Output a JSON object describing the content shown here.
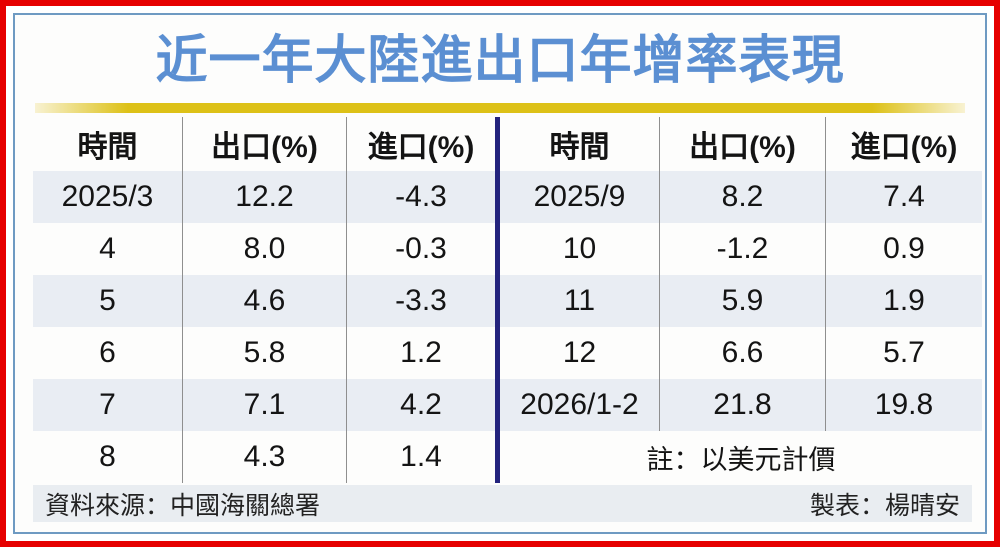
{
  "title": "近一年大陸進出口年增率表現",
  "tables": [
    {
      "headers": [
        "時間",
        "出口(%)",
        "進口(%)"
      ],
      "rows": [
        [
          "2025/3",
          "12.2",
          "-4.3"
        ],
        [
          "4",
          "8.0",
          "-0.3"
        ],
        [
          "5",
          "4.6",
          "-3.3"
        ],
        [
          "6",
          "5.8",
          "1.2"
        ],
        [
          "7",
          "7.1",
          "4.2"
        ],
        [
          "8",
          "4.3",
          "1.4"
        ]
      ]
    },
    {
      "headers": [
        "時間",
        "出口(%)",
        "進口(%)"
      ],
      "rows": [
        [
          "2025/9",
          "8.2",
          "7.4"
        ],
        [
          "10",
          "-1.2",
          "0.9"
        ],
        [
          "11",
          "5.9",
          "1.9"
        ],
        [
          "12",
          "6.6",
          "5.7"
        ],
        [
          "2026/1-2",
          "21.8",
          "19.8"
        ]
      ],
      "note": "註：以美元計價"
    }
  ],
  "footer": {
    "source": "資料來源：中國海關總署",
    "credit": "製表：楊晴安"
  },
  "colors": {
    "title_blue": "#5b8fd2",
    "accent_gold": "#ddc117",
    "frame_red": "#e60000",
    "frame_blue": "#6e9ac2",
    "row_shade": "#e9edf3",
    "center_divider_navy": "#23237d",
    "footer_bg": "#e9edf1"
  },
  "chart_data": {
    "type": "table",
    "title": "近一年大陸進出口年增率表現",
    "columns": [
      "時間",
      "出口(%)",
      "進口(%)"
    ],
    "rows": [
      [
        "2025/3",
        12.2,
        -4.3
      ],
      [
        "2025/4",
        8.0,
        -0.3
      ],
      [
        "2025/5",
        4.6,
        -3.3
      ],
      [
        "2025/6",
        5.8,
        1.2
      ],
      [
        "2025/7",
        7.1,
        4.2
      ],
      [
        "2025/8",
        4.3,
        1.4
      ],
      [
        "2025/9",
        8.2,
        7.4
      ],
      [
        "2025/10",
        -1.2,
        0.9
      ],
      [
        "2025/11",
        5.9,
        1.9
      ],
      [
        "2025/12",
        6.6,
        5.7
      ],
      [
        "2026/1-2",
        21.8,
        19.8
      ]
    ],
    "note": "註：以美元計價",
    "source": "資料來源：中國海關總署",
    "credit": "製表：楊晴安"
  }
}
